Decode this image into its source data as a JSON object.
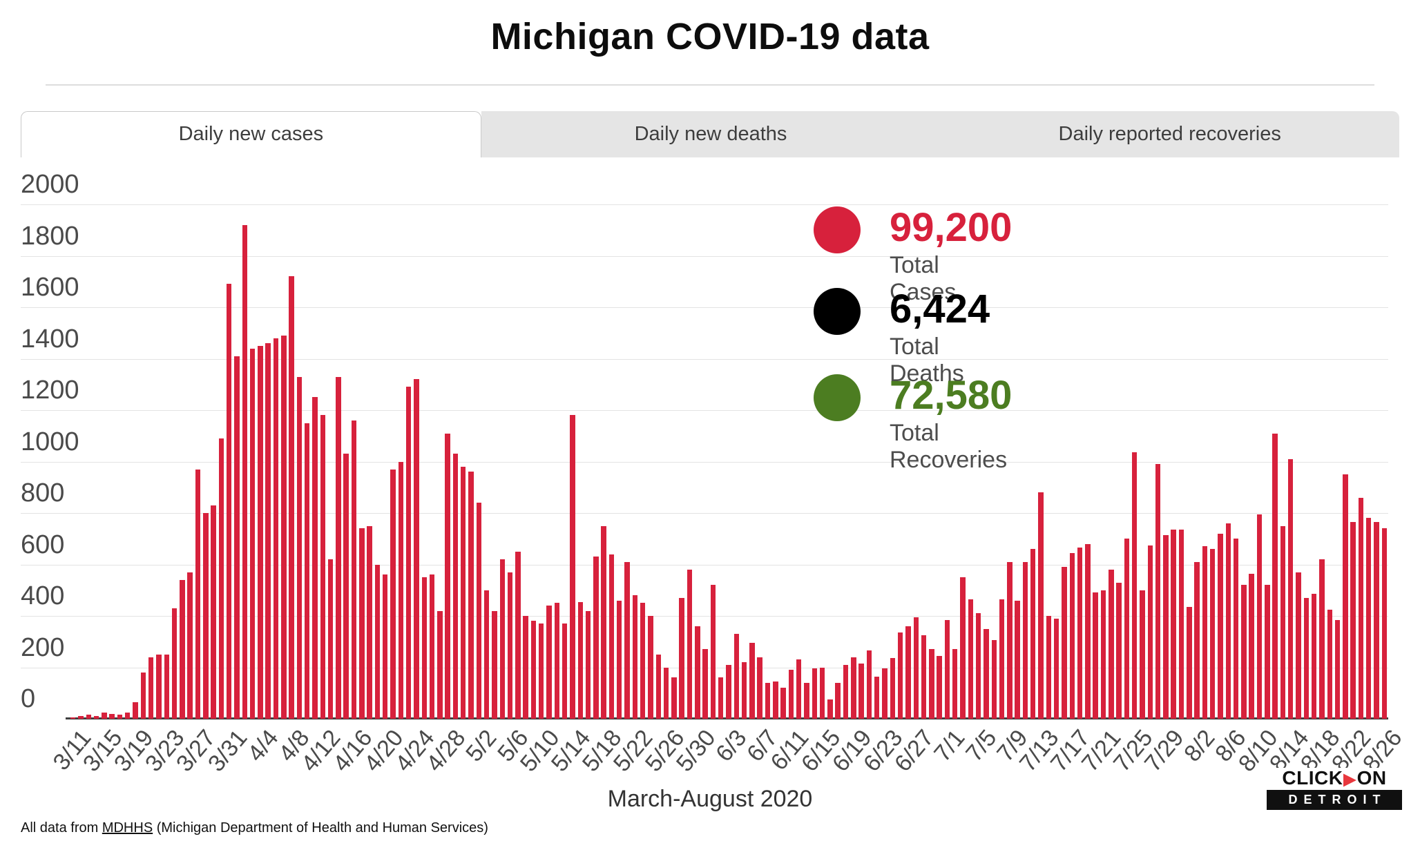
{
  "page": {
    "title": "Michigan COVID-19 data"
  },
  "tabs": [
    {
      "label": "Daily new cases",
      "active": true
    },
    {
      "label": "Daily new deaths",
      "active": false
    },
    {
      "label": "Daily reported recoveries",
      "active": false
    }
  ],
  "legend": [
    {
      "value": "99,200",
      "label": "Total Cases",
      "color": "#d7213c"
    },
    {
      "value": "6,424",
      "label": "Total Deaths",
      "color": "#000000"
    },
    {
      "value": "72,580",
      "label": "Total Recoveries",
      "color": "#4c7d21"
    }
  ],
  "chart_data": {
    "type": "bar",
    "title": "Daily new cases",
    "xlabel": "March-August 2020",
    "ylabel": "",
    "ylim": [
      0,
      2000
    ],
    "y_ticks": [
      0,
      200,
      400,
      600,
      800,
      1000,
      1200,
      1400,
      1600,
      1800,
      2000
    ],
    "grid": true,
    "bar_color": "#d7213c",
    "tick_every": 4,
    "x_tick_labels": [
      "3/11",
      "3/15",
      "3/19",
      "3/23",
      "3/27",
      "3/31",
      "4/4",
      "4/8",
      "4/12",
      "4/16",
      "4/20",
      "4/24",
      "4/28",
      "5/2",
      "5/6",
      "5/10",
      "5/14",
      "5/18",
      "5/22",
      "5/26",
      "5/30",
      "6/3",
      "6/7",
      "6/11",
      "6/15",
      "6/19",
      "6/23",
      "6/27",
      "7/1",
      "7/5",
      "7/9",
      "7/13",
      "7/17",
      "7/21",
      "7/25",
      "7/29",
      "8/2",
      "8/6",
      "8/10",
      "8/14",
      "8/18",
      "8/22",
      "8/26"
    ],
    "values": [
      5,
      10,
      15,
      10,
      25,
      20,
      15,
      25,
      65,
      180,
      240,
      250,
      250,
      430,
      540,
      570,
      970,
      800,
      830,
      1090,
      1690,
      1410,
      1920,
      1440,
      1450,
      1460,
      1480,
      1490,
      1720,
      1330,
      1150,
      1250,
      1180,
      620,
      1330,
      1030,
      1160,
      740,
      750,
      600,
      560,
      970,
      1000,
      1290,
      1320,
      550,
      560,
      420,
      1110,
      1030,
      980,
      960,
      840,
      500,
      420,
      620,
      570,
      650,
      400,
      380,
      370,
      440,
      450,
      370,
      1180,
      455,
      420,
      630,
      750,
      640,
      460,
      610,
      480,
      450,
      400,
      250,
      200,
      160,
      470,
      580,
      360,
      270,
      520,
      160,
      210,
      330,
      220,
      295,
      240,
      140,
      145,
      120,
      190,
      230,
      140,
      195,
      200,
      75,
      140,
      210,
      240,
      215,
      265,
      165,
      195,
      235,
      335,
      360,
      395,
      325,
      270,
      245,
      385,
      270,
      550,
      465,
      410,
      350,
      305,
      465,
      610,
      460,
      610,
      660,
      880,
      400,
      390,
      590,
      645,
      665,
      680,
      490,
      500,
      580,
      530,
      700,
      1035,
      500,
      675,
      990,
      715,
      735,
      735,
      435,
      610,
      670,
      660,
      720,
      760,
      700,
      520,
      565,
      795,
      520,
      1110,
      750,
      1010,
      570,
      470,
      485,
      620,
      425,
      385,
      950,
      765,
      860,
      780,
      765,
      740
    ]
  },
  "footer": {
    "prefix": "All data from ",
    "link_text": "MDHHS",
    "suffix": " (Michigan Department of Health and Human Services)"
  },
  "logo": {
    "top_left": "CLICK",
    "top_right": "ON",
    "bottom": "DETROIT"
  },
  "colors": {
    "bar": "#d7213c",
    "grid": "#e3e3e3",
    "axis": "#3f3f3f",
    "tick_text": "#4a4a4a",
    "tab_bg": "#e5e5e5"
  }
}
